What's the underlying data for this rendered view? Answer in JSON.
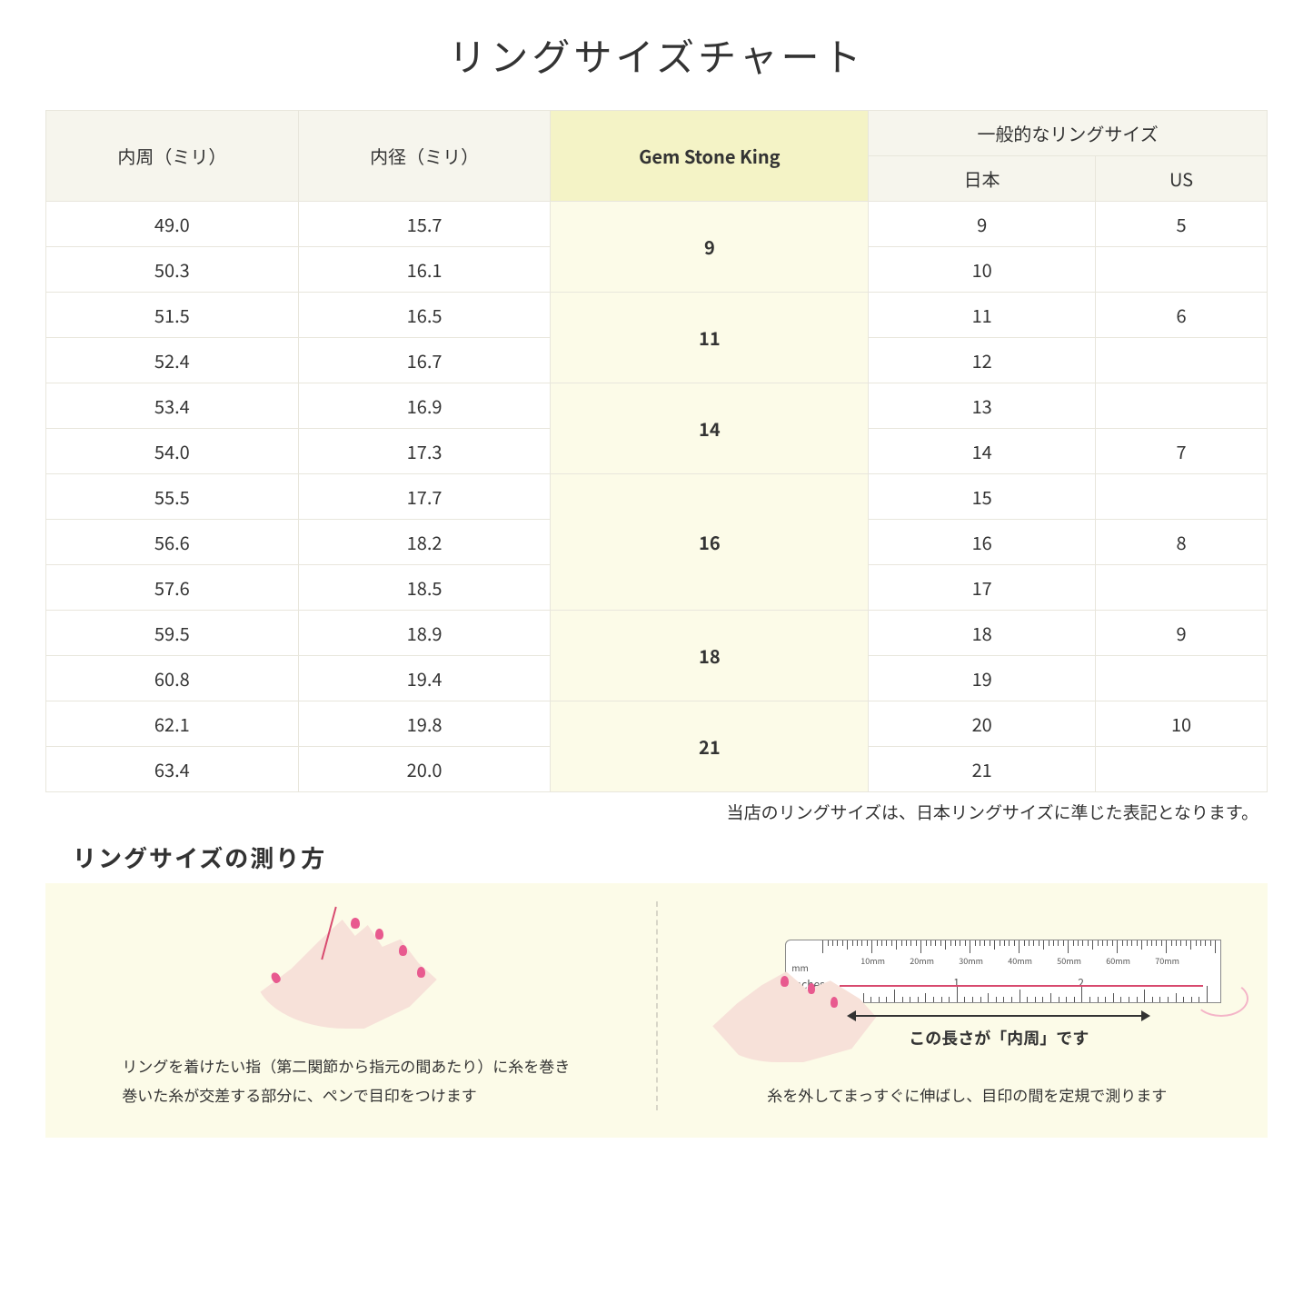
{
  "title": "リングサイズチャート",
  "headers": {
    "circumference": "内周（ミリ）",
    "diameter": "内径（ミリ）",
    "gsk": "Gem Stone King",
    "general": "一般的なリングサイズ",
    "japan": "日本",
    "us": "US"
  },
  "rows": [
    {
      "circ": "49.0",
      "dia": "15.7",
      "gsk": "9",
      "gsk_span": 2,
      "jp": "9",
      "us": "5"
    },
    {
      "circ": "50.3",
      "dia": "16.1",
      "gsk": null,
      "gsk_span": 0,
      "jp": "10",
      "us": ""
    },
    {
      "circ": "51.5",
      "dia": "16.5",
      "gsk": "11",
      "gsk_span": 2,
      "jp": "11",
      "us": "6"
    },
    {
      "circ": "52.4",
      "dia": "16.7",
      "gsk": null,
      "gsk_span": 0,
      "jp": "12",
      "us": ""
    },
    {
      "circ": "53.4",
      "dia": "16.9",
      "gsk": "14",
      "gsk_span": 2,
      "jp": "13",
      "us": ""
    },
    {
      "circ": "54.0",
      "dia": "17.3",
      "gsk": null,
      "gsk_span": 0,
      "jp": "14",
      "us": "7"
    },
    {
      "circ": "55.5",
      "dia": "17.7",
      "gsk": "16",
      "gsk_span": 3,
      "jp": "15",
      "us": ""
    },
    {
      "circ": "56.6",
      "dia": "18.2",
      "gsk": null,
      "gsk_span": 0,
      "jp": "16",
      "us": "8"
    },
    {
      "circ": "57.6",
      "dia": "18.5",
      "gsk": null,
      "gsk_span": 0,
      "jp": "17",
      "us": ""
    },
    {
      "circ": "59.5",
      "dia": "18.9",
      "gsk": "18",
      "gsk_span": 2,
      "jp": "18",
      "us": "9"
    },
    {
      "circ": "60.8",
      "dia": "19.4",
      "gsk": null,
      "gsk_span": 0,
      "jp": "19",
      "us": ""
    },
    {
      "circ": "62.1",
      "dia": "19.8",
      "gsk": "21",
      "gsk_span": 2,
      "jp": "20",
      "us": "10"
    },
    {
      "circ": "63.4",
      "dia": "20.0",
      "gsk": null,
      "gsk_span": 0,
      "jp": "21",
      "us": ""
    }
  ],
  "note": "当店のリングサイズは、日本リングサイズに準じた表記となります。",
  "howto_title": "リングサイズの測り方",
  "instr1_line1": "リングを着けたい指（第二関節から指元の間あたり）に糸を巻き",
  "instr1_line2": "巻いた糸が交差する部分に、ペンで目印をつけます",
  "instr2": "糸を外してまっすぐに伸ばし、目印の間を定規で測ります",
  "arrow_label": "この長さが「内周」です",
  "ruler": {
    "mm_label": "mm",
    "in_label": "Inches",
    "mm_marks": [
      "10mm",
      "20mm",
      "30mm",
      "40mm",
      "50mm",
      "60mm",
      "70mm"
    ],
    "in_marks": [
      "1",
      "2"
    ]
  },
  "colors": {
    "header_bg": "#f6f5ed",
    "highlight_bg": "#f4f3c6",
    "highlight_cell_bg": "#fcfbe8",
    "border": "#e8e6dc",
    "skin": "#f7e1d9",
    "nail": "#e85a8f",
    "thread": "#d84a6f",
    "instruction_bg": "#fcfbe8"
  }
}
